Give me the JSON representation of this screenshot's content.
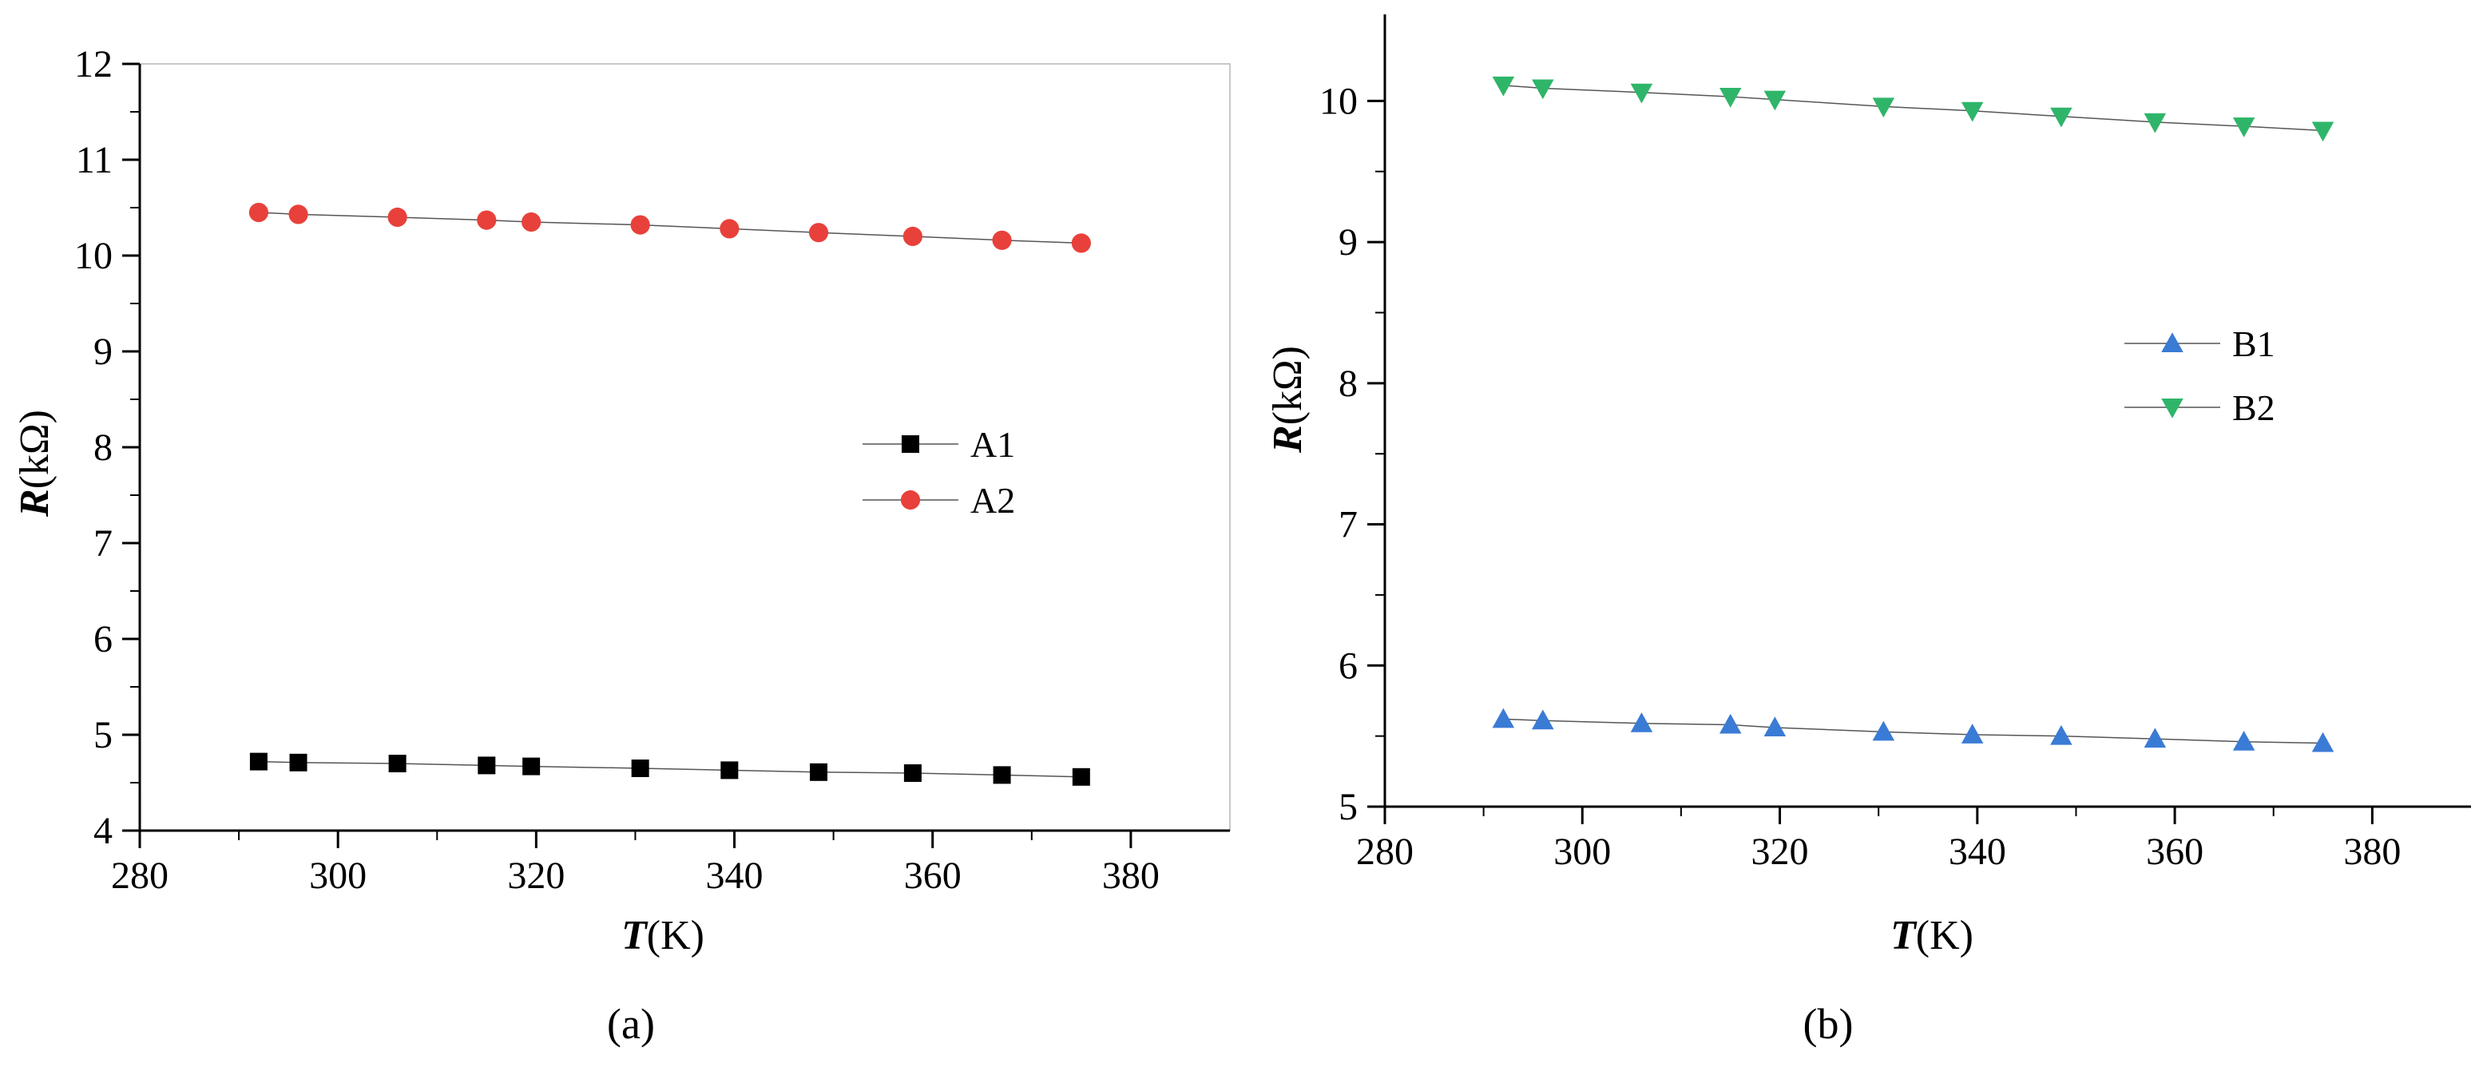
{
  "chart_data": [
    {
      "panel_label": "(a)",
      "type": "line",
      "xlabel_symbol": "T",
      "xlabel_unit": "(K)",
      "ylabel_symbol": "R",
      "ylabel_unit": "(kΩ)",
      "xlim": [
        280,
        390
      ],
      "ylim": [
        4,
        12
      ],
      "xticks": [
        280,
        300,
        320,
        340,
        360,
        380
      ],
      "yticks": [
        4,
        5,
        6,
        7,
        8,
        9,
        10,
        11,
        12
      ],
      "grid": false,
      "legend_position": "right-middle",
      "x": [
        292,
        296,
        306,
        315,
        319.5,
        330.5,
        339.5,
        348.5,
        358,
        367,
        375
      ],
      "series": [
        {
          "name": "A1",
          "marker": "square",
          "color": "#000000",
          "values": [
            4.72,
            4.71,
            4.7,
            4.68,
            4.67,
            4.65,
            4.63,
            4.61,
            4.6,
            4.58,
            4.56
          ]
        },
        {
          "name": "A2",
          "marker": "circle",
          "color": "#e8413b",
          "values": [
            10.45,
            10.43,
            10.4,
            10.37,
            10.35,
            10.32,
            10.28,
            10.24,
            10.2,
            10.16,
            10.13
          ]
        }
      ]
    },
    {
      "panel_label": "(b)",
      "type": "line",
      "xlabel_symbol": "T",
      "xlabel_unit": "(K)",
      "ylabel_symbol": "R",
      "ylabel_unit": "(kΩ)",
      "xlim": [
        280,
        390
      ],
      "ylim": [
        5,
        10.5
      ],
      "xticks": [
        280,
        300,
        320,
        340,
        360,
        380
      ],
      "yticks": [
        5,
        6,
        7,
        8,
        9,
        10
      ],
      "grid": false,
      "legend_position": "right-middle",
      "x": [
        292,
        296,
        306,
        315,
        319.5,
        330.5,
        339.5,
        348.5,
        358,
        367,
        375
      ],
      "series": [
        {
          "name": "B1",
          "marker": "triangle-up",
          "color": "#3a7bd5",
          "values": [
            5.62,
            5.61,
            5.59,
            5.58,
            5.56,
            5.53,
            5.51,
            5.5,
            5.48,
            5.46,
            5.45
          ]
        },
        {
          "name": "B2",
          "marker": "triangle-down",
          "color": "#2fb56a",
          "values": [
            10.11,
            10.09,
            10.06,
            10.03,
            10.01,
            9.96,
            9.93,
            9.89,
            9.85,
            9.82,
            9.79
          ]
        }
      ]
    }
  ]
}
